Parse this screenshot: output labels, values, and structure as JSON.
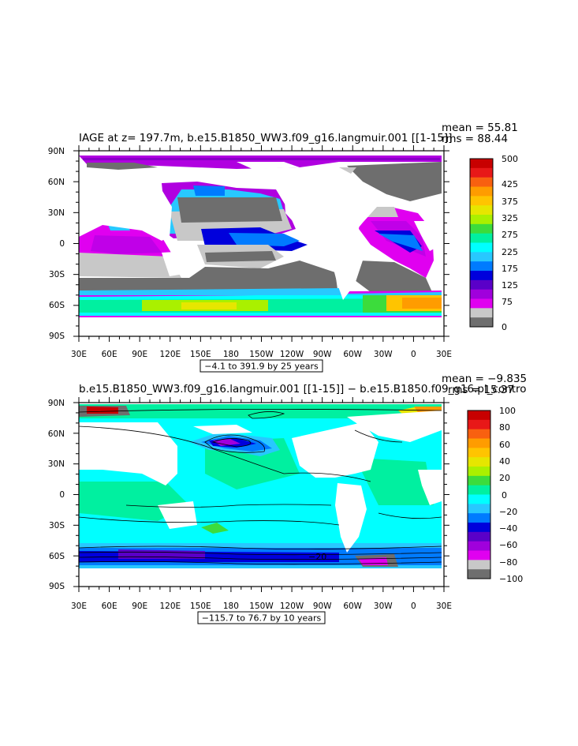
{
  "chart_data": [
    {
      "type": "heatmap",
      "title": "IAGE at z= 197.7m, b.e15.B1850_WW3.f09_g16.langmuir.001 [[1-15]]",
      "stats": {
        "mean": "mean = 55.81",
        "rms": "rms = 88.44"
      },
      "x_ticks": [
        "30E",
        "60E",
        "90E",
        "120E",
        "150E",
        "180",
        "150W",
        "120W",
        "90W",
        "60W",
        "30W",
        "0",
        "30E"
      ],
      "y_ticks": [
        "90N",
        "60N",
        "30N",
        "0",
        "30S",
        "60S",
        "90S"
      ],
      "range_label": "−4.1 to 391.9 by 25 years",
      "colorbar": {
        "labels": [
          "500",
          "425",
          "375",
          "325",
          "275",
          "225",
          "175",
          "125",
          "75",
          "0"
        ],
        "colors": [
          "#c80000",
          "#e81818",
          "#f86010",
          "#ff9c00",
          "#ffc400",
          "#e6e600",
          "#aaf000",
          "#3cdc3c",
          "#00f0a0",
          "#00ffff",
          "#28c8ff",
          "#007bff",
          "#0000dc",
          "#5a00c8",
          "#a000dc",
          "#e000f0",
          "#c8c8c8",
          "#6e6e6e"
        ]
      }
    },
    {
      "type": "heatmap",
      "title": "b.e15.B1850_WW3.f09_g16.langmuir.001 [[1-15]] − b.e15.B1850.f09_g16.pi_contro",
      "stats": {
        "mean": "mean = −9.835",
        "rms": "rms = 15.37"
      },
      "x_ticks": [
        "30E",
        "60E",
        "90E",
        "120E",
        "150E",
        "180",
        "150W",
        "120W",
        "90W",
        "60W",
        "30W",
        "0",
        "30E"
      ],
      "y_ticks": [
        "90N",
        "60N",
        "30N",
        "0",
        "30S",
        "60S",
        "90S"
      ],
      "range_label": "−115.7 to 76.7 by 10 years",
      "colorbar": {
        "labels": [
          "100",
          "80",
          "60",
          "40",
          "20",
          "0",
          "−20",
          "−40",
          "−60",
          "−80",
          "−100"
        ],
        "colors": [
          "#c80000",
          "#e81818",
          "#f86010",
          "#ff9c00",
          "#ffc400",
          "#e6e600",
          "#aaf000",
          "#3cdc3c",
          "#00f0a0",
          "#00ffff",
          "#28c8ff",
          "#007bff",
          "#0000dc",
          "#5a00c8",
          "#a000dc",
          "#e000f0",
          "#c8c8c8",
          "#6e6e6e"
        ]
      },
      "contour_label": "−20"
    }
  ]
}
